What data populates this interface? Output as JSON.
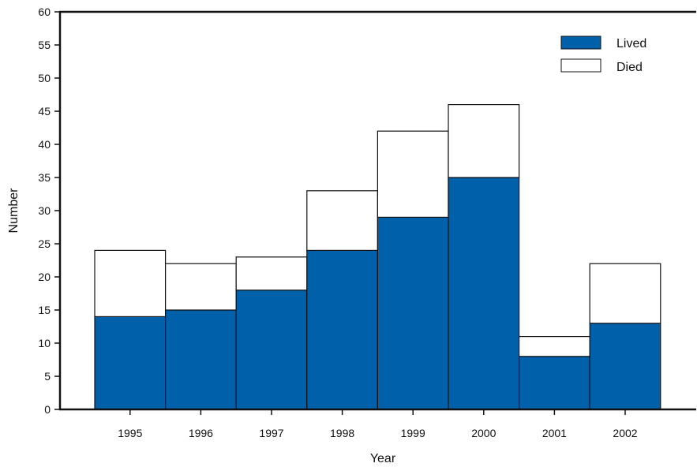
{
  "chart_data": {
    "type": "bar",
    "stacked": true,
    "title": "",
    "xlabel": "Year",
    "ylabel": "Number",
    "ylim": [
      0,
      60
    ],
    "yticks": [
      "0",
      "5",
      "10",
      "15",
      "20",
      "25",
      "30",
      "35",
      "40",
      "45",
      "50",
      "55",
      "60"
    ],
    "categories": [
      "1995",
      "1996",
      "1997",
      "1998",
      "1999",
      "2000",
      "2001",
      "2002"
    ],
    "series": [
      {
        "name": "Lived",
        "color": "#0060a9",
        "values": [
          14,
          15,
          18,
          24,
          29,
          35,
          8,
          13
        ]
      },
      {
        "name": "Died",
        "color": "#ffffff",
        "values": [
          10,
          7,
          5,
          9,
          13,
          11,
          3,
          9
        ]
      }
    ],
    "grid": false,
    "legend_position": "top-right"
  }
}
